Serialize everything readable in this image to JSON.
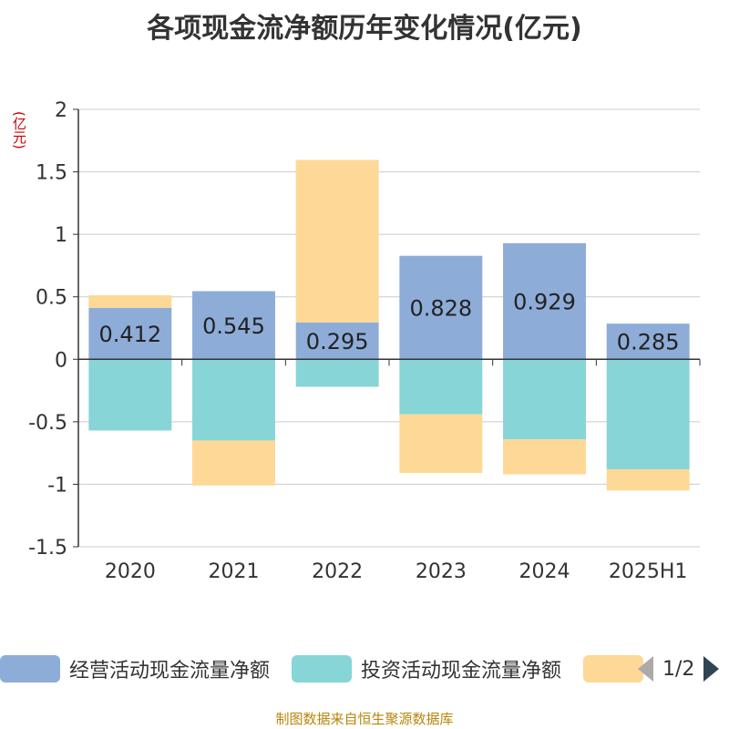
{
  "title": "各项现金流净额历年变化情况(亿元)",
  "unit_label": "(亿元)",
  "source": "制图数据来自恒生聚源数据库",
  "legend": {
    "page": "1/2"
  },
  "chart_data": {
    "type": "bar",
    "stacked": true,
    "categories": [
      "2020",
      "2021",
      "2022",
      "2023",
      "2024",
      "2025H1"
    ],
    "ylim": [
      -1.5,
      2
    ],
    "yticks": [
      2,
      1.5,
      1,
      0.5,
      0,
      -0.5,
      -1,
      -1.5
    ],
    "ytick_labels": [
      "2",
      "1.5",
      "1",
      "0.5",
      "0",
      "-0.5",
      "-1",
      "-1.5"
    ],
    "grid": true,
    "legend_position": "bottom",
    "series": [
      {
        "name": "经营活动现金流量净额",
        "color": "#8eacd8",
        "values": [
          0.412,
          0.545,
          0.295,
          0.828,
          0.929,
          0.285
        ],
        "labels": [
          "0.412",
          "0.545",
          "0.295",
          "0.828",
          "0.929",
          "0.285"
        ]
      },
      {
        "name": "投资活动现金流量净额",
        "color": "#87d5d7",
        "values": [
          -0.57,
          -0.65,
          -0.22,
          -0.44,
          -0.64,
          -0.88
        ]
      },
      {
        "name": "",
        "color": "#fed896",
        "values": [
          0.1,
          -0.36,
          1.3,
          -0.47,
          -0.28,
          -0.17
        ]
      }
    ]
  }
}
